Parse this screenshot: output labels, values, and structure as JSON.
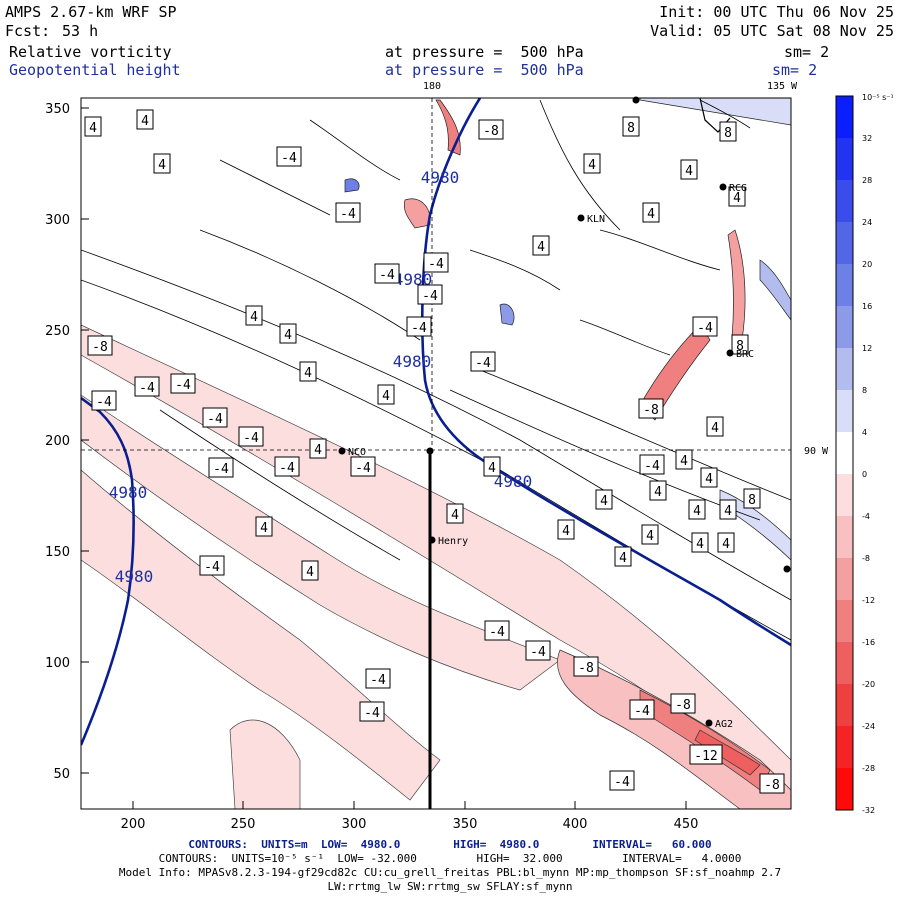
{
  "header": {
    "model": "AMPS 2.67-km WRF SP",
    "init": "Init: 00 UTC Thu 06 Nov 25",
    "fcst_label": "Fcst:",
    "fcst_value": "53 h",
    "valid": "Valid: 05 UTC Sat 08 Nov 25",
    "field1_name": "Relative vorticity",
    "field1_level": "at pressure =  500 hPa",
    "field1_sm": "sm= 2",
    "field2_name": "Geopotential height",
    "field2_level": "at pressure =  500 hPa",
    "field2_sm": "sm= 2"
  },
  "map_labels": {
    "lon_180": "180",
    "lon_135": "135 W",
    "lon_90": "90 W"
  },
  "axes": {
    "x_ticks": [
      "200",
      "250",
      "300",
      "350",
      "400",
      "450"
    ],
    "y_ticks": [
      "350",
      "300",
      "250",
      "200",
      "150",
      "100",
      "50"
    ]
  },
  "stations": [
    "NCO",
    "Henry",
    "KLN",
    "RCG",
    "BRC",
    "AG2"
  ],
  "colorbar": {
    "unit": "10⁻⁵ s⁻¹",
    "ticks": [
      "32",
      "28",
      "24",
      "20",
      "16",
      "12",
      "8",
      "4",
      "0",
      "-4",
      "-8",
      "-12",
      "-16",
      "-20",
      "-24",
      "-28",
      "-32"
    ],
    "colors": [
      "#0a1eff",
      "#2234f2",
      "#3b4ced",
      "#5466e8",
      "#6e7fe6",
      "#8d9ae9",
      "#b3bcef",
      "#d9ddf7",
      "#ffffff",
      "#fcdede",
      "#f8c0c0",
      "#f4a0a0",
      "#f08080",
      "#ee6060",
      "#ef4040",
      "#f42424",
      "#ff0a0a"
    ]
  },
  "footer": {
    "line1": "CONTOURS:  UNITS=m  LOW=  4980.0        HIGH=  4980.0        INTERVAL=   60.000",
    "line2": "CONTOURS:  UNITS=10⁻⁵ s⁻¹  LOW= -32.000         HIGH=  32.000         INTERVAL=   4.0000",
    "line3": "Model Info: MPASv8.2.3-194-gf29cd82c CU:cu_grell_freitas PBL:bl_mynn MP:mp_thompson SF:sf_noahmp 2.7",
    "line4": "LW:rrtmg_lw SW:rrtmg_sw SFLAY:sf_mynn"
  },
  "contour_labels": {
    "height": [
      "4980",
      "4980",
      "4980",
      "4980",
      "4980",
      "4980"
    ],
    "vort": [
      "-8",
      "-4",
      "-4",
      "-4",
      "-4",
      "-4",
      "-4",
      "-4",
      "-4",
      "-4",
      "-4",
      "-4",
      "-4",
      "-4",
      "-4",
      "-4",
      "-4",
      "-4",
      "-4",
      "-8",
      "-8",
      "-12",
      "-8",
      "-4",
      "4",
      "4",
      "4",
      "4",
      "4",
      "4",
      "4",
      "4",
      "4",
      "4",
      "4",
      "4",
      "4",
      "4",
      "4",
      "4",
      "4",
      "4",
      "4",
      "4",
      "4",
      "4",
      "4",
      "4",
      "4",
      "4",
      "4",
      "4",
      "4",
      "8",
      "8",
      "8",
      "8",
      "-8",
      "-8",
      "-4",
      "-4",
      "-4",
      "-4",
      "-4"
    ]
  }
}
